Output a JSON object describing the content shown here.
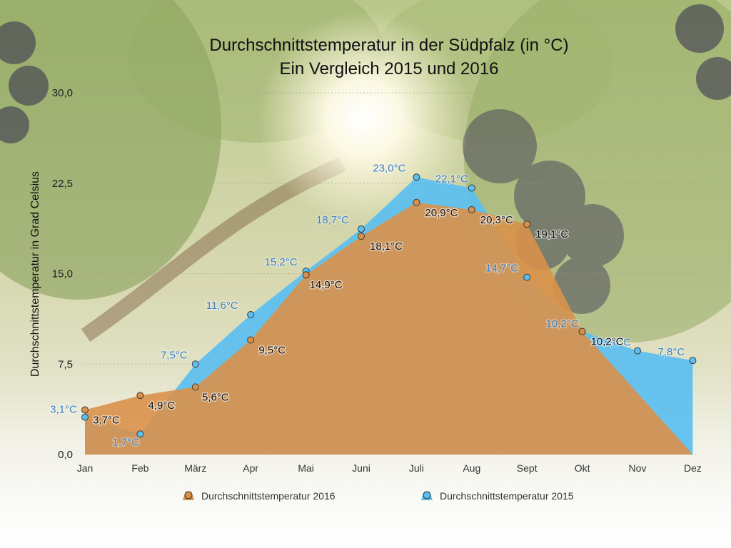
{
  "chart_data": {
    "type": "area",
    "title": "Durchschnittstemperatur in der Südpfalz (in °C)",
    "subtitle": "Ein Vergleich 2015 und 2016",
    "ylabel": "Durchschnittstemperatur in Grad Celsius",
    "xlabel": "",
    "ylim": [
      0,
      30
    ],
    "yticks": [
      "0,0",
      "7,5",
      "15,0",
      "22,5",
      "30,0"
    ],
    "categories": [
      "Jan",
      "Feb",
      "März",
      "Apr",
      "Mai",
      "Juni",
      "Juli",
      "Aug",
      "Sept",
      "Okt",
      "Nov",
      "Dez"
    ],
    "grid": true,
    "legend_position": "bottom",
    "series": [
      {
        "name": "Durchschnittstemperatur 2016",
        "color": "#d9914a",
        "values": [
          3.7,
          4.9,
          5.6,
          9.5,
          14.9,
          18.1,
          20.9,
          20.3,
          19.1,
          10.2,
          null,
          0.0
        ],
        "labels": [
          "3,7°C",
          "4,9°C",
          "5,6°C",
          "9,5°C",
          "14,9°C",
          "18,1°C",
          "20,9°C",
          "20,3°C",
          "19,1°C",
          "10,2°C",
          "",
          ""
        ]
      },
      {
        "name": "Durchschnittstemperatur 2015",
        "color": "#5bbff0",
        "values": [
          3.1,
          1.7,
          7.5,
          11.6,
          15.2,
          18.7,
          23.0,
          22.1,
          14.7,
          10.2,
          8.6,
          7.8
        ],
        "labels": [
          "3,1°C",
          "1,7°C",
          "7,5°C",
          "11,6°C",
          "15,2°C",
          "18,7°C",
          "23,0°C",
          "22,1°C",
          "14,7°C",
          "10,2°C",
          "8,6°C",
          "7,8°C"
        ]
      }
    ]
  }
}
